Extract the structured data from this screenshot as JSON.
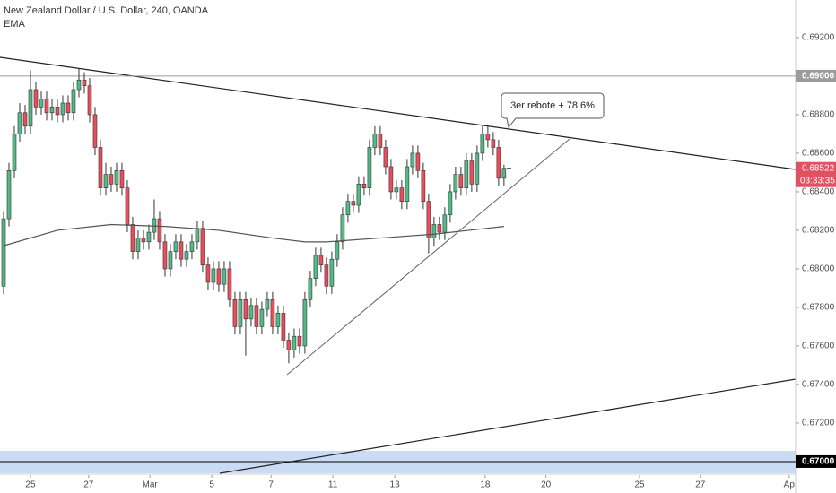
{
  "chart_data": {
    "type": "candlestick",
    "title": "New Zealand Dollar / U.S. Dollar, 240, OANDA",
    "indicator": "EMA",
    "annotation": "3er rebote + 78.6%",
    "x": [
      0,
      1,
      2,
      3,
      4,
      5,
      6,
      7,
      8,
      9,
      10,
      11,
      12,
      13,
      14,
      15,
      16,
      17,
      18,
      19,
      20,
      21,
      22,
      23,
      24,
      25,
      26,
      27,
      28,
      29,
      30,
      31,
      32,
      33,
      34,
      35,
      36,
      37,
      38,
      39,
      40,
      41,
      42,
      43,
      44,
      45,
      46,
      47,
      48,
      49,
      50,
      51,
      52,
      53,
      54,
      55,
      56,
      57,
      58,
      59,
      60,
      61,
      62,
      63,
      64,
      65,
      66,
      67,
      68,
      69,
      70,
      71,
      72,
      73,
      74,
      75,
      76,
      77,
      78,
      79,
      80,
      81,
      82,
      83,
      84,
      85,
      86,
      87,
      88,
      89,
      90,
      91,
      92,
      93
    ],
    "open": [
      0.6791,
      0.6826,
      0.6851,
      0.687,
      0.6881,
      0.6874,
      0.6893,
      0.6884,
      0.6888,
      0.6881,
      0.6884,
      0.688,
      0.6886,
      0.6881,
      0.6893,
      0.6898,
      0.6895,
      0.688,
      0.6863,
      0.6842,
      0.6849,
      0.6844,
      0.6851,
      0.6842,
      0.6823,
      0.6809,
      0.6816,
      0.6814,
      0.6819,
      0.6826,
      0.6814,
      0.68,
      0.6809,
      0.6814,
      0.6805,
      0.6809,
      0.6814,
      0.6821,
      0.6802,
      0.6793,
      0.68,
      0.6792,
      0.68,
      0.6784,
      0.677,
      0.6784,
      0.6774,
      0.6781,
      0.677,
      0.6779,
      0.6784,
      0.677,
      0.6777,
      0.6763,
      0.6758,
      0.6765,
      0.676,
      0.6784,
      0.6795,
      0.6807,
      0.6802,
      0.6791,
      0.6805,
      0.6814,
      0.6828,
      0.6835,
      0.6833,
      0.6844,
      0.6842,
      0.6863,
      0.687,
      0.6863,
      0.6853,
      0.684,
      0.6842,
      0.6835,
      0.6853,
      0.686,
      0.6851,
      0.6835,
      0.6816,
      0.6823,
      0.6819,
      0.6828,
      0.684,
      0.6849,
      0.6842,
      0.6856,
      0.6844,
      0.686,
      0.687,
      0.6867,
      0.6863,
      0.6847
    ],
    "high": [
      0.683,
      0.6855,
      0.6874,
      0.6886,
      0.6885,
      0.6903,
      0.6897,
      0.6892,
      0.6892,
      0.6888,
      0.6888,
      0.689,
      0.689,
      0.6897,
      0.6904,
      0.6902,
      0.6899,
      0.6884,
      0.6867,
      0.6855,
      0.6853,
      0.6855,
      0.6855,
      0.6846,
      0.6827,
      0.682,
      0.682,
      0.6823,
      0.6836,
      0.683,
      0.6818,
      0.6813,
      0.6818,
      0.6818,
      0.6813,
      0.6818,
      0.6825,
      0.6825,
      0.6806,
      0.6804,
      0.6804,
      0.6804,
      0.6804,
      0.6788,
      0.6788,
      0.6788,
      0.6785,
      0.6785,
      0.6783,
      0.6788,
      0.6788,
      0.6781,
      0.6781,
      0.6767,
      0.6769,
      0.6769,
      0.6788,
      0.6799,
      0.6811,
      0.6811,
      0.6806,
      0.6809,
      0.6818,
      0.6832,
      0.6839,
      0.6839,
      0.6848,
      0.6848,
      0.6867,
      0.6874,
      0.6874,
      0.6867,
      0.6857,
      0.6846,
      0.6846,
      0.6857,
      0.6864,
      0.6864,
      0.6855,
      0.6839,
      0.6827,
      0.6827,
      0.6832,
      0.6844,
      0.6853,
      0.6853,
      0.686,
      0.686,
      0.6864,
      0.6874,
      0.6874,
      0.6871,
      0.6867,
      0.6854
    ],
    "low": [
      0.6787,
      0.6822,
      0.6847,
      0.6866,
      0.687,
      0.687,
      0.688,
      0.688,
      0.6877,
      0.6877,
      0.6876,
      0.6876,
      0.6877,
      0.6877,
      0.6889,
      0.6891,
      0.6876,
      0.6859,
      0.6838,
      0.6838,
      0.684,
      0.684,
      0.6838,
      0.6819,
      0.6805,
      0.6805,
      0.681,
      0.681,
      0.6815,
      0.681,
      0.6796,
      0.6796,
      0.6805,
      0.6801,
      0.6801,
      0.6805,
      0.681,
      0.6798,
      0.6789,
      0.6789,
      0.6788,
      0.6788,
      0.678,
      0.6766,
      0.6766,
      0.6755,
      0.677,
      0.6766,
      0.6766,
      0.6775,
      0.6766,
      0.6766,
      0.6759,
      0.6751,
      0.6754,
      0.6756,
      0.6756,
      0.678,
      0.6791,
      0.6798,
      0.6787,
      0.6787,
      0.6801,
      0.681,
      0.6824,
      0.6829,
      0.6829,
      0.6838,
      0.6838,
      0.6859,
      0.6859,
      0.6849,
      0.6836,
      0.6836,
      0.6831,
      0.6831,
      0.6849,
      0.6847,
      0.6831,
      0.6808,
      0.6812,
      0.6815,
      0.6815,
      0.6824,
      0.6836,
      0.6838,
      0.6838,
      0.684,
      0.684,
      0.6856,
      0.6863,
      0.6859,
      0.6843,
      0.6843
    ],
    "close": [
      0.6826,
      0.6851,
      0.687,
      0.6881,
      0.6874,
      0.6893,
      0.6884,
      0.6888,
      0.6881,
      0.6884,
      0.688,
      0.6886,
      0.6881,
      0.6893,
      0.6898,
      0.6895,
      0.688,
      0.6863,
      0.6842,
      0.6849,
      0.6844,
      0.6851,
      0.6842,
      0.6823,
      0.6809,
      0.6816,
      0.6814,
      0.6819,
      0.6826,
      0.6814,
      0.68,
      0.6809,
      0.6814,
      0.6805,
      0.6809,
      0.6814,
      0.6821,
      0.6802,
      0.6793,
      0.68,
      0.6792,
      0.68,
      0.6784,
      0.677,
      0.6784,
      0.6774,
      0.6781,
      0.677,
      0.6779,
      0.6784,
      0.677,
      0.6777,
      0.6763,
      0.6758,
      0.6765,
      0.676,
      0.6784,
      0.6795,
      0.6807,
      0.6802,
      0.6791,
      0.6805,
      0.6814,
      0.6828,
      0.6835,
      0.6833,
      0.6844,
      0.6842,
      0.6863,
      0.687,
      0.6863,
      0.6853,
      0.684,
      0.6842,
      0.6835,
      0.6853,
      0.686,
      0.6851,
      0.6835,
      0.6816,
      0.6823,
      0.6819,
      0.6828,
      0.684,
      0.6849,
      0.6842,
      0.6856,
      0.6844,
      0.686,
      0.687,
      0.6867,
      0.6863,
      0.6847,
      0.68522
    ],
    "up_color": "#53b987",
    "down_color": "#eb4d5c",
    "ema": {
      "color": "#555555",
      "x": [
        0,
        10,
        20,
        30,
        40,
        50,
        56,
        60,
        70,
        80,
        93
      ],
      "values": [
        0.6812,
        0.682,
        0.6823,
        0.6822,
        0.682,
        0.6816,
        0.6814,
        0.6814,
        0.6816,
        0.6818,
        0.6822
      ]
    },
    "xlim": [
      -0.667,
      147.2
    ],
    "xticks": [
      {
        "value": 5,
        "label": "25"
      },
      {
        "value": 15.8,
        "label": "27"
      },
      {
        "value": 27.2,
        "label": "Mar"
      },
      {
        "value": 38.7,
        "label": "5"
      },
      {
        "value": 49.7,
        "label": "7"
      },
      {
        "value": 61.2,
        "label": "11"
      },
      {
        "value": 72.7,
        "label": "13"
      },
      {
        "value": 89.5,
        "label": "18"
      },
      {
        "value": 100.8,
        "label": "20"
      },
      {
        "value": 118.2,
        "label": "25"
      },
      {
        "value": 129.5,
        "label": "27"
      },
      {
        "value": 146,
        "label": "Ap"
      }
    ],
    "ylim": [
      0.6693,
      0.69395
    ],
    "yticks": [
      {
        "value": 0.692,
        "label": "0.69200"
      },
      {
        "value": 0.688,
        "label": "0.68800"
      },
      {
        "value": 0.686,
        "label": "0.68600"
      },
      {
        "value": 0.684,
        "label": "0.68400"
      },
      {
        "value": 0.682,
        "label": "0.68200"
      },
      {
        "value": 0.68,
        "label": "0.68000"
      },
      {
        "value": 0.678,
        "label": "0.67800"
      },
      {
        "value": 0.676,
        "label": "0.67600"
      },
      {
        "value": 0.674,
        "label": "0.67400"
      },
      {
        "value": 0.672,
        "label": "0.67200"
      }
    ],
    "levels": [
      {
        "value": 0.69,
        "label": "0.69000",
        "color": "#9b9b9b"
      },
      {
        "value": 0.67,
        "label": "0.67000",
        "color": "#000000"
      }
    ],
    "last_price": {
      "value": 0.68522,
      "label": "0.68522",
      "color": "#e05262"
    },
    "countdown": "03:33:35"
  }
}
